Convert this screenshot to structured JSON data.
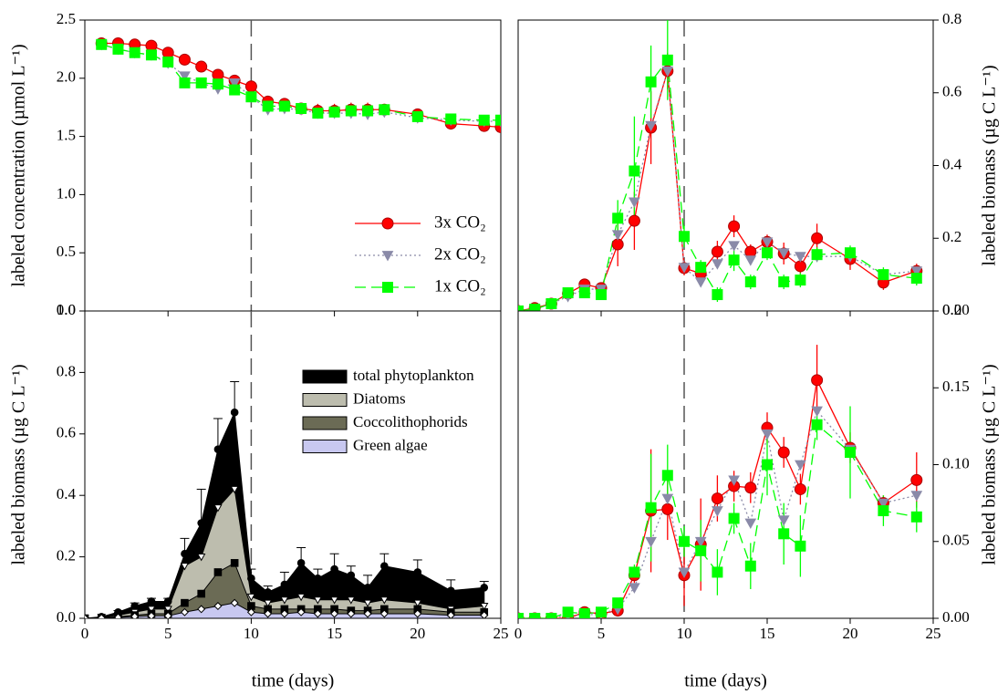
{
  "chart_data": [
    {
      "type": "line",
      "ylabel": "labeled concentration (µmol L⁻¹)",
      "y_axis_side": "left",
      "show_xtick_labels": false,
      "vline": 10,
      "x": [
        1,
        2,
        3,
        4,
        5,
        6,
        7,
        8,
        9,
        10,
        11,
        12,
        13,
        14,
        15,
        16,
        17,
        18,
        20,
        22,
        24,
        25
      ],
      "xlim": [
        0,
        25
      ],
      "xticks": [
        0,
        5,
        10,
        15,
        20,
        25
      ],
      "ylim": [
        0,
        2.5
      ],
      "yticks": [
        {
          "value": 0,
          "label": "0.0"
        },
        0.5,
        {
          "value": 1,
          "label": "1.0"
        },
        1.5,
        {
          "value": 2,
          "label": "2.0"
        },
        2.5
      ],
      "legend": "lower right",
      "series": [
        {
          "name": "3x CO₂",
          "color": "#ff0000",
          "marker": "circle",
          "linestyle": "solid",
          "values": [
            2.3,
            2.3,
            2.29,
            2.28,
            2.22,
            2.16,
            2.1,
            2.03,
            1.98,
            1.93,
            1.8,
            1.78,
            1.74,
            1.72,
            1.72,
            1.73,
            1.73,
            1.73,
            1.69,
            1.61,
            1.59,
            1.58
          ],
          "errors": [
            0.01,
            0.01,
            0.01,
            0.01,
            0.02,
            0.02,
            0.02,
            0.02,
            0.02,
            0.03,
            0.05,
            0.05,
            0.04,
            0.06,
            0.06,
            0.06,
            0.06,
            0.05,
            0.04,
            0.03,
            0.02,
            0.02
          ]
        },
        {
          "name": "2x CO₂",
          "color": "#8a8aa8",
          "marker": "triangle-down",
          "linestyle": "dotted",
          "values": [
            2.29,
            2.25,
            2.22,
            2.2,
            2.13,
            2.02,
            1.96,
            1.91,
            1.96,
            1.84,
            1.73,
            1.74,
            1.73,
            1.7,
            1.7,
            1.7,
            1.69,
            1.71,
            1.66,
            1.64,
            1.63,
            1.63
          ]
        },
        {
          "name": "1x CO₂",
          "color": "#00ff00",
          "marker": "square",
          "linestyle": "dashed",
          "values": [
            2.29,
            2.25,
            2.22,
            2.2,
            2.14,
            1.96,
            1.96,
            1.95,
            1.9,
            1.84,
            1.76,
            1.76,
            1.74,
            1.7,
            1.71,
            1.72,
            1.72,
            1.73,
            1.67,
            1.65,
            1.64,
            1.64
          ],
          "errors": [
            0.01,
            0.01,
            0.01,
            0.01,
            0.02,
            0.02,
            0.02,
            0.02,
            0.02,
            0.02,
            0.03,
            0.03,
            0.03,
            0.04,
            0.04,
            0.04,
            0.04,
            0.03,
            0.03,
            0.02,
            0.02,
            0.02
          ]
        }
      ]
    },
    {
      "type": "line",
      "ylabel": "labeled biomass (µg C L⁻¹)",
      "y_axis_side": "right",
      "show_xtick_labels": false,
      "vline": 10,
      "x": [
        0,
        1,
        2,
        3,
        4,
        5,
        6,
        7,
        8,
        9,
        10,
        11,
        12,
        13,
        14,
        15,
        16,
        17,
        18,
        20,
        22,
        24
      ],
      "xlim": [
        0,
        25
      ],
      "xticks": [
        0,
        5,
        10,
        15,
        20,
        25
      ],
      "ylim": [
        0,
        0.8
      ],
      "yticks": [
        {
          "value": 0,
          "label": "0.0"
        },
        0.2,
        0.4,
        0.6,
        0.8
      ],
      "series": [
        {
          "color": "#ff0000",
          "marker": "circle",
          "linestyle": "solid",
          "values": [
            0,
            0.008,
            0.02,
            0.048,
            0.073,
            0.063,
            0.183,
            0.248,
            0.504,
            0.66,
            0.118,
            0.103,
            0.163,
            0.233,
            0.163,
            0.19,
            0.158,
            0.123,
            0.2,
            0.143,
            0.078,
            0.11
          ],
          "errors": [
            0,
            0,
            0,
            0,
            0.01,
            0.01,
            0.06,
            0.08,
            0.1,
            0.05,
            0.02,
            0.02,
            0.03,
            0.03,
            0.02,
            0.02,
            0.03,
            0.03,
            0.04,
            0.03,
            0.02,
            0.02
          ]
        },
        {
          "color": "#8a8aa8",
          "marker": "triangle-down",
          "linestyle": "dotted",
          "values": [
            0,
            0.005,
            0.02,
            0.04,
            0.06,
            0.06,
            0.21,
            0.3,
            0.51,
            0.66,
            0.12,
            0.08,
            0.13,
            0.18,
            0.14,
            0.19,
            0.16,
            0.15,
            0.15,
            0.15,
            0.1,
            0.11
          ]
        },
        {
          "color": "#00ff00",
          "marker": "square",
          "linestyle": "dashed",
          "values": [
            0,
            0.005,
            0.02,
            0.05,
            0.05,
            0.045,
            0.255,
            0.385,
            0.63,
            0.69,
            0.205,
            0.12,
            0.045,
            0.14,
            0.08,
            0.16,
            0.08,
            0.085,
            0.155,
            0.16,
            0.1,
            0.09
          ],
          "errors": [
            0,
            0,
            0,
            0,
            0.01,
            0.01,
            0.05,
            0.15,
            0.1,
            0.11,
            0.03,
            0.02,
            0.02,
            0.03,
            0.02,
            0.02,
            0.02,
            0.02,
            0.02,
            0.02,
            0.02,
            0.02
          ]
        }
      ]
    },
    {
      "type": "area",
      "ylabel": "labeled biomass (µg C L⁻¹)",
      "xlabel": "time (days)",
      "y_axis_side": "left",
      "vline": 10,
      "x": [
        0,
        1,
        2,
        3,
        4,
        5,
        6,
        7,
        8,
        9,
        10,
        11,
        12,
        13,
        14,
        15,
        16,
        17,
        18,
        20,
        22,
        24
      ],
      "xlim": [
        0,
        25
      ],
      "xticks": [
        0,
        5,
        10,
        15,
        20,
        25
      ],
      "ylim": [
        0,
        1
      ],
      "yticks": [
        {
          "value": 0,
          "label": "0.0"
        },
        0.2,
        0.4,
        0.6,
        0.8,
        {
          "value": 1,
          "label": "1.0"
        }
      ],
      "legend": "upper right",
      "series": [
        {
          "name": "total phytoplankton",
          "color": "#000000",
          "marker": "circle",
          "marker_fill": "#000000",
          "values": [
            0,
            0.005,
            0.02,
            0.04,
            0.055,
            0.055,
            0.21,
            0.31,
            0.55,
            0.67,
            0.13,
            0.085,
            0.11,
            0.18,
            0.13,
            0.16,
            0.14,
            0.1,
            0.17,
            0.15,
            0.09,
            0.1
          ],
          "errors": [
            0,
            0,
            0.005,
            0.01,
            0.01,
            0.01,
            0.05,
            0.11,
            0.1,
            0.1,
            0.03,
            0.02,
            0.04,
            0.05,
            0.03,
            0.05,
            0.03,
            0.04,
            0.04,
            0.04,
            0.035,
            0.02
          ]
        },
        {
          "name": "Diatoms",
          "color": "#bdbdae",
          "marker": "triangle-down",
          "marker_fill": "#ffffff",
          "values": [
            0,
            0.003,
            0.01,
            0.02,
            0.03,
            0.03,
            0.17,
            0.2,
            0.36,
            0.42,
            0.07,
            0.05,
            0.06,
            0.07,
            0.06,
            0.06,
            0.06,
            0.05,
            0.06,
            0.05,
            0.03,
            0.04
          ]
        },
        {
          "name": "Coccolithophorids",
          "color": "#6b6b55",
          "marker": "square",
          "marker_fill": "#000000",
          "values": [
            0,
            0.002,
            0.005,
            0.01,
            0.015,
            0.015,
            0.05,
            0.08,
            0.15,
            0.18,
            0.04,
            0.03,
            0.03,
            0.03,
            0.03,
            0.03,
            0.025,
            0.025,
            0.03,
            0.03,
            0.02,
            0.02
          ]
        },
        {
          "name": "Green algae",
          "color": "#c8c8f0",
          "marker": "diamond",
          "marker_fill": "#ffffff",
          "values": [
            0,
            0.001,
            0.003,
            0.006,
            0.008,
            0.008,
            0.02,
            0.03,
            0.04,
            0.05,
            0.02,
            0.015,
            0.015,
            0.02,
            0.015,
            0.015,
            0.015,
            0.015,
            0.015,
            0.015,
            0.01,
            0.01
          ]
        }
      ]
    },
    {
      "type": "line",
      "ylabel": "labeled biomass (µg C L⁻¹)",
      "xlabel": "time (days)",
      "y_axis_side": "right",
      "vline": 10,
      "x": [
        0,
        1,
        2,
        3,
        4,
        5,
        6,
        7,
        8,
        9,
        10,
        11,
        12,
        13,
        14,
        15,
        16,
        17,
        18,
        20,
        22,
        24
      ],
      "xlim": [
        0,
        25
      ],
      "xticks": [
        0,
        5,
        10,
        15,
        20,
        25
      ],
      "ylim": [
        0,
        0.2
      ],
      "yticks": [
        {
          "value": 0,
          "label": "0.00"
        },
        0.05,
        {
          "value": 0.1,
          "label": "0.10"
        },
        0.15,
        {
          "value": 0.2,
          "label": "0.20"
        }
      ],
      "series": [
        {
          "color": "#ff0000",
          "marker": "circle",
          "linestyle": "solid",
          "values": [
            0,
            0,
            0,
            0,
            0.004,
            0.003,
            0.005,
            0.028,
            0.07,
            0.071,
            0.028,
            0.048,
            0.078,
            0.086,
            0.085,
            0.124,
            0.108,
            0.084,
            0.155,
            0.111,
            0.075,
            0.09
          ],
          "errors": [
            0,
            0,
            0,
            0,
            0,
            0,
            0.002,
            0.005,
            0.04,
            0.02,
            0.02,
            0.03,
            0.015,
            0.01,
            0.01,
            0.01,
            0.01,
            0.01,
            0.023,
            0.01,
            0.005,
            0.018
          ]
        },
        {
          "color": "#8a8aa8",
          "marker": "triangle-down",
          "linestyle": "dotted",
          "values": [
            0,
            0,
            0,
            0.002,
            0.002,
            0.003,
            0.006,
            0.02,
            0.05,
            0.078,
            0.03,
            0.05,
            0.07,
            0.09,
            0.062,
            0.12,
            0.064,
            0.1,
            0.135,
            0.11,
            0.075,
            0.08
          ]
        },
        {
          "color": "#00ff00",
          "marker": "square",
          "linestyle": "dashed",
          "values": [
            0,
            0,
            0,
            0.004,
            0.003,
            0.004,
            0.01,
            0.03,
            0.072,
            0.093,
            0.05,
            0.044,
            0.03,
            0.065,
            0.034,
            0.1,
            0.055,
            0.047,
            0.126,
            0.108,
            0.07,
            0.066
          ],
          "errors": [
            0,
            0,
            0,
            0,
            0,
            0,
            0.002,
            0.005,
            0.035,
            0.02,
            0.01,
            0.02,
            0.015,
            0.01,
            0.015,
            0.02,
            0.02,
            0.02,
            0.01,
            0.03,
            0.01,
            0.01
          ]
        }
      ]
    }
  ]
}
